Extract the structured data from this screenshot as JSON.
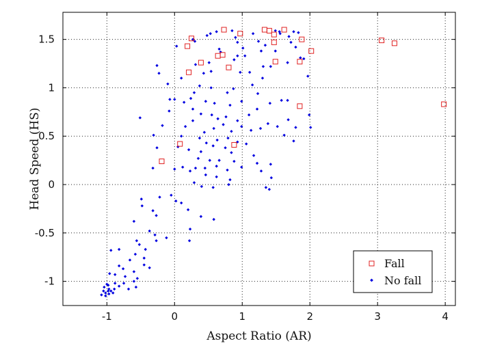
{
  "chart_data": {
    "type": "scatter",
    "title": "",
    "xlabel": "Aspect Ratio (AR)",
    "ylabel": "Head Speed (HS)",
    "xlim": [
      -1.65,
      4.15
    ],
    "ylim": [
      -1.25,
      1.78
    ],
    "xticks": [
      -1,
      0,
      1,
      2,
      3,
      4
    ],
    "xtick_labels": [
      "-1",
      "0",
      "1",
      "2",
      "3",
      "4"
    ],
    "yticks": [
      -1,
      -0.5,
      0,
      0.5,
      1,
      1.5
    ],
    "ytick_labels": [
      "-1",
      "-0.5",
      "0",
      "0.5",
      "1",
      "1.5"
    ],
    "grid": true,
    "legend_position": "bottom-right",
    "colors": {
      "fall": "#e02020",
      "no_fall": "#0000e0"
    },
    "series": [
      {
        "name": "Fall",
        "marker": "square",
        "points": [
          [
            0.73,
            1.6
          ],
          [
            0.97,
            1.56
          ],
          [
            1.33,
            1.6
          ],
          [
            1.4,
            1.59
          ],
          [
            1.47,
            1.55
          ],
          [
            1.62,
            1.6
          ],
          [
            1.88,
            1.5
          ],
          [
            3.06,
            1.49
          ],
          [
            3.25,
            1.46
          ],
          [
            0.25,
            1.51
          ],
          [
            0.19,
            1.43
          ],
          [
            1.47,
            1.47
          ],
          [
            2.02,
            1.38
          ],
          [
            0.71,
            1.34
          ],
          [
            0.64,
            1.33
          ],
          [
            0.39,
            1.26
          ],
          [
            1.49,
            1.27
          ],
          [
            1.85,
            1.27
          ],
          [
            0.8,
            1.21
          ],
          [
            0.21,
            1.16
          ],
          [
            3.98,
            0.83
          ],
          [
            1.85,
            0.81
          ],
          [
            0.08,
            0.42
          ],
          [
            0.88,
            0.41
          ],
          [
            -0.19,
            0.24
          ]
        ]
      },
      {
        "name": "No fall",
        "marker": "dot",
        "points": [
          [
            0.53,
            1.56
          ],
          [
            0.62,
            1.58
          ],
          [
            0.85,
            1.59
          ],
          [
            0.9,
            1.52
          ],
          [
            1.16,
            1.56
          ],
          [
            1.49,
            1.59
          ],
          [
            1.55,
            1.58
          ],
          [
            1.76,
            1.58
          ],
          [
            1.83,
            1.57
          ],
          [
            1.69,
            1.53
          ],
          [
            0.27,
            1.5
          ],
          [
            0.3,
            1.48
          ],
          [
            0.48,
            1.54
          ],
          [
            0.93,
            1.47
          ],
          [
            1.24,
            1.48
          ],
          [
            1.56,
            1.56
          ],
          [
            0.03,
            1.43
          ],
          [
            0.66,
            1.4
          ],
          [
            1.01,
            1.41
          ],
          [
            1.79,
            1.42
          ],
          [
            1.28,
            1.38
          ],
          [
            0.68,
            1.37
          ],
          [
            0.93,
            1.33
          ],
          [
            1.04,
            1.33
          ],
          [
            1.34,
            1.44
          ],
          [
            1.72,
            1.47
          ],
          [
            1.49,
            1.38
          ],
          [
            1.86,
            1.31
          ],
          [
            0.88,
            1.29
          ],
          [
            0.51,
            1.26
          ],
          [
            1.31,
            1.22
          ],
          [
            1.91,
            1.3
          ],
          [
            1.67,
            1.26
          ],
          [
            0.31,
            1.24
          ],
          [
            0.43,
            1.15
          ],
          [
            0.54,
            1.17
          ],
          [
            1.11,
            1.16
          ],
          [
            1.15,
            1.03
          ],
          [
            1.42,
            1.22
          ],
          [
            1.97,
            1.12
          ],
          [
            -0.26,
            1.23
          ],
          [
            -0.23,
            1.15
          ],
          [
            -0.1,
            1.04
          ],
          [
            0.1,
            1.1
          ],
          [
            0.37,
            1.02
          ],
          [
            0.54,
            1.0
          ],
          [
            0.78,
            0.95
          ],
          [
            0.87,
            0.99
          ],
          [
            0.97,
            1.16
          ],
          [
            1.3,
            1.1
          ],
          [
            0.29,
            0.95
          ],
          [
            0.24,
            0.89
          ],
          [
            0.46,
            0.86
          ],
          [
            0.59,
            0.84
          ],
          [
            0.82,
            0.82
          ],
          [
            0.99,
            0.86
          ],
          [
            1.23,
            0.94
          ],
          [
            1.41,
            0.84
          ],
          [
            1.58,
            0.87
          ],
          [
            1.67,
            0.87
          ],
          [
            1.99,
            0.72
          ],
          [
            -0.07,
            0.88
          ],
          [
            0.0,
            0.88
          ],
          [
            0.14,
            0.85
          ],
          [
            0.27,
            0.78
          ],
          [
            0.39,
            0.73
          ],
          [
            0.55,
            0.72
          ],
          [
            0.64,
            0.68
          ],
          [
            0.76,
            0.7
          ],
          [
            0.93,
            0.66
          ],
          [
            1.1,
            0.72
          ],
          [
            1.22,
            0.78
          ],
          [
            1.38,
            0.63
          ],
          [
            1.68,
            0.67
          ],
          [
            1.79,
            0.59
          ],
          [
            2.01,
            0.59
          ],
          [
            -0.51,
            0.69
          ],
          [
            -0.18,
            0.61
          ],
          [
            -0.08,
            0.76
          ],
          [
            0.16,
            0.6
          ],
          [
            0.27,
            0.66
          ],
          [
            0.44,
            0.54
          ],
          [
            0.58,
            0.58
          ],
          [
            0.72,
            0.62
          ],
          [
            0.84,
            0.55
          ],
          [
            0.99,
            0.6
          ],
          [
            1.13,
            0.56
          ],
          [
            1.27,
            0.58
          ],
          [
            1.52,
            0.6
          ],
          [
            -0.31,
            0.51
          ],
          [
            0.1,
            0.5
          ],
          [
            0.37,
            0.48
          ],
          [
            0.47,
            0.43
          ],
          [
            0.63,
            0.46
          ],
          [
            0.79,
            0.48
          ],
          [
            0.93,
            0.44
          ],
          [
            1.06,
            0.42
          ],
          [
            1.62,
            0.51
          ],
          [
            1.76,
            0.45
          ],
          [
            -0.26,
            0.38
          ],
          [
            0.05,
            0.39
          ],
          [
            0.21,
            0.36
          ],
          [
            0.39,
            0.34
          ],
          [
            0.57,
            0.4
          ],
          [
            0.75,
            0.38
          ],
          [
            0.84,
            0.33
          ],
          [
            1.17,
            0.3
          ],
          [
            0.35,
            0.27
          ],
          [
            0.52,
            0.25
          ],
          [
            0.66,
            0.25
          ],
          [
            0.88,
            0.24
          ],
          [
            1.22,
            0.22
          ],
          [
            1.42,
            0.21
          ],
          [
            0.31,
            0.17
          ],
          [
            0.45,
            0.17
          ],
          [
            0.62,
            0.19
          ],
          [
            0.78,
            0.15
          ],
          [
            0.99,
            0.18
          ],
          [
            1.28,
            0.14
          ],
          [
            -0.32,
            0.17
          ],
          [
            0.0,
            0.16
          ],
          [
            0.12,
            0.18
          ],
          [
            0.23,
            0.14
          ],
          [
            0.46,
            0.1
          ],
          [
            0.62,
            0.08
          ],
          [
            0.82,
            0.05
          ],
          [
            1.43,
            0.07
          ],
          [
            0.29,
            0.02
          ],
          [
            0.4,
            -0.02
          ],
          [
            0.57,
            -0.03
          ],
          [
            0.8,
            0.0
          ],
          [
            1.35,
            -0.03
          ],
          [
            1.4,
            -0.05
          ],
          [
            -0.49,
            -0.15
          ],
          [
            -0.22,
            -0.13
          ],
          [
            -0.05,
            -0.11
          ],
          [
            0.02,
            -0.17
          ],
          [
            0.1,
            -0.19
          ],
          [
            -0.48,
            -0.22
          ],
          [
            -0.32,
            -0.27
          ],
          [
            -0.27,
            -0.32
          ],
          [
            0.2,
            -0.26
          ],
          [
            0.39,
            -0.33
          ],
          [
            0.58,
            -0.36
          ],
          [
            -0.6,
            -0.38
          ],
          [
            -0.37,
            -0.48
          ],
          [
            -0.29,
            -0.52
          ],
          [
            -0.12,
            -0.55
          ],
          [
            0.23,
            -0.46
          ],
          [
            -0.56,
            -0.58
          ],
          [
            -0.52,
            -0.62
          ],
          [
            -0.43,
            -0.67
          ],
          [
            -0.27,
            -0.58
          ],
          [
            0.22,
            -0.58
          ],
          [
            -0.58,
            -0.72
          ],
          [
            -0.45,
            -0.76
          ],
          [
            -0.82,
            -0.67
          ],
          [
            -0.94,
            -0.68
          ],
          [
            -0.66,
            -0.78
          ],
          [
            -0.45,
            -0.83
          ],
          [
            -0.37,
            -0.86
          ],
          [
            -0.6,
            -0.9
          ],
          [
            -0.82,
            -0.84
          ],
          [
            -0.76,
            -0.87
          ],
          [
            -0.88,
            -0.93
          ],
          [
            -0.96,
            -0.92
          ],
          [
            -0.55,
            -0.97
          ],
          [
            -0.73,
            -0.95
          ],
          [
            -0.6,
            -1.0
          ],
          [
            -0.75,
            -1.02
          ],
          [
            -0.82,
            -1.05
          ],
          [
            -0.88,
            -1.02
          ],
          [
            -1.0,
            -1.03
          ],
          [
            -0.98,
            -1.1
          ],
          [
            -0.89,
            -1.08
          ],
          [
            -0.91,
            -1.12
          ],
          [
            -0.97,
            -1.08
          ],
          [
            -1.02,
            -1.12
          ],
          [
            -1.05,
            -1.1
          ],
          [
            -1.08,
            -1.14
          ],
          [
            -1.02,
            -1.15
          ],
          [
            -0.97,
            -1.13
          ],
          [
            -0.94,
            -1.1
          ],
          [
            -0.68,
            -1.08
          ],
          [
            -0.57,
            -1.06
          ],
          [
            -1.04,
            -1.06
          ],
          [
            -0.98,
            -1.04
          ]
        ]
      }
    ]
  }
}
